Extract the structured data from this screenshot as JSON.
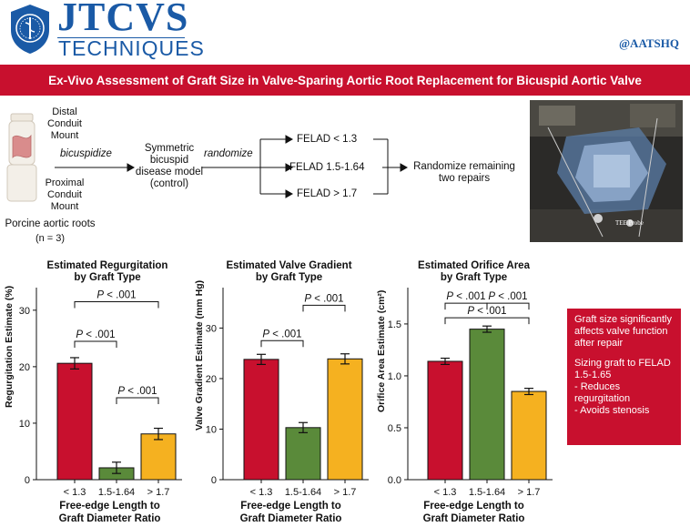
{
  "header": {
    "brand": "JTCVS",
    "brand_sub": "TECHNIQUES",
    "handle": "@AATSHQ"
  },
  "title": "Ex-Vivo Assessment of Graft Size in Valve-Sparing Aortic Root Replacement for Bicuspid Aortic Valve",
  "flow": {
    "distal_label": "Distal Conduit Mount",
    "proximal_label": "Proximal Conduit Mount",
    "specimen_label": "Porcine aortic roots",
    "specimen_n": "(n = 3)",
    "step1": "bicuspidize",
    "model": "Symmetric bicuspid disease model (control)",
    "step2": "randomize",
    "groups": [
      "FELAD < 1.3",
      "FELAD 1.5-1.64",
      "FELAD > 1.7"
    ],
    "outcome": "Randomize remaining two repairs"
  },
  "photo": {
    "caption": "TEE Probe"
  },
  "colors": {
    "red": "#c8102e",
    "green": "#5a8a3a",
    "orange": "#f5b120",
    "blue": "#1a5aa6"
  },
  "takeaway": {
    "line1": "Graft size significantly affects valve function after repair",
    "line2": "Sizing graft to FELAD 1.5-1.65",
    "bullet1": "- Reduces regurgitation",
    "bullet2": "- Avoids stenosis"
  },
  "chart_data": [
    {
      "type": "bar",
      "title": "Estimated Regurgitation by Graft Type",
      "ylabel": "Regurgitation Estimate (%)",
      "xlabel": "Free-edge Length to Graft Diameter Ratio",
      "categories": [
        "< 1.3",
        "1.5-1.64",
        "> 1.7"
      ],
      "values": [
        20.6,
        2.1,
        8.1
      ],
      "errors": [
        1.0,
        1.0,
        1.0
      ],
      "ylim": [
        0,
        34
      ],
      "yticks": [
        0,
        10,
        20,
        30
      ],
      "comparisons": [
        {
          "a": 0,
          "b": 2,
          "level": 31.5,
          "label": "P < .001"
        },
        {
          "a": 0,
          "b": 1,
          "level": 24.5,
          "label": "P < .001"
        },
        {
          "a": 1,
          "b": 2,
          "level": 14.5,
          "label": "P < .001"
        }
      ]
    },
    {
      "type": "bar",
      "title": "Estimated Valve Gradient by Graft Type",
      "ylabel": "Valve Gradient Estimate (mm Hg)",
      "xlabel": "Free-edge Length to Graft Diameter Ratio",
      "categories": [
        "< 1.3",
        "1.5-1.64",
        "> 1.7"
      ],
      "values": [
        23.8,
        10.3,
        23.9
      ],
      "errors": [
        1.0,
        1.0,
        1.0
      ],
      "ylim": [
        0,
        38
      ],
      "yticks": [
        0,
        10,
        20,
        30
      ],
      "comparisons": [
        {
          "a": 0,
          "b": 1,
          "level": 27.5,
          "label": "P < .001"
        },
        {
          "a": 1,
          "b": 2,
          "level": 34.5,
          "label": "P < .001"
        }
      ]
    },
    {
      "type": "bar",
      "title": "Estimated Orifice Area by Graft Type",
      "ylabel": "Orifice Area Estimate (cm²)",
      "xlabel": "Free-edge Length to Graft Diameter Ratio",
      "categories": [
        "< 1.3",
        "1.5-1.64",
        "> 1.7"
      ],
      "values": [
        1.14,
        1.45,
        0.85
      ],
      "errors": [
        0.03,
        0.03,
        0.03
      ],
      "ylim": [
        0,
        1.85
      ],
      "yticks": [
        0.0,
        0.5,
        1.0,
        1.5
      ],
      "comparisons": [
        {
          "a": 0,
          "b": 1,
          "level": 1.7,
          "label": "P < .001"
        },
        {
          "a": 1,
          "b": 2,
          "level": 1.7,
          "label": "P < .001"
        },
        {
          "a": 0,
          "b": 2,
          "level": 1.56,
          "label": "P < .001"
        }
      ]
    }
  ]
}
